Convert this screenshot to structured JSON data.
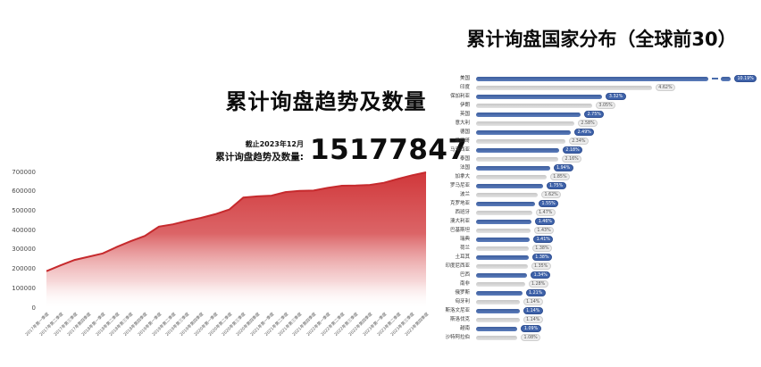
{
  "left_chart": {
    "title": "累计询盘趋势及数量",
    "as_of": "截止2023年12月",
    "stat_label": "累计询盘趋势及数量:",
    "stat_value": "15177847"
  },
  "right_chart": {
    "title": "累计询盘国家分布（全球前30）"
  },
  "colors": {
    "area_fill_top": "#cf3134",
    "area_line": "#c62a2d",
    "bar_blue": "#4a6dac",
    "bar_gray": "#d8d8d8",
    "badge_blue": "#3f63aa",
    "badge_gray": "#ececec"
  },
  "chart_data": [
    {
      "type": "area",
      "title": "累计询盘趋势及数量",
      "xlabel": "",
      "ylabel": "",
      "ylim": [
        0,
        700000
      ],
      "yticks": [
        0,
        100000,
        200000,
        300000,
        400000,
        500000,
        600000,
        700000
      ],
      "grid": false,
      "x": [
        "2017年第一季度",
        "2017年第二季度",
        "2017年第三季度",
        "2017年第四季度",
        "2018年第一季度",
        "2018年第二季度",
        "2018年第三季度",
        "2018年第四季度",
        "2019年第一季度",
        "2019年第二季度",
        "2019年第三季度",
        "2019年第四季度",
        "2020年第一季度",
        "2020年第二季度",
        "2020年第三季度",
        "2020年第四季度",
        "2021年第一季度",
        "2021年第二季度",
        "2021年第三季度",
        "2021年第四季度",
        "2022年第一季度",
        "2022年第二季度",
        "2022年第三季度",
        "2022年第四季度",
        "2023年第一季度",
        "2023年第二季度",
        "2023年第三季度",
        "2023年第四季度"
      ],
      "values": [
        190000,
        220000,
        248000,
        265000,
        282000,
        315000,
        345000,
        372000,
        420000,
        432000,
        450000,
        465000,
        484000,
        508000,
        570000,
        576000,
        580000,
        598000,
        604000,
        606000,
        620000,
        631000,
        632000,
        635000,
        646000,
        666000,
        685000,
        700000
      ]
    },
    {
      "type": "bar",
      "orientation": "horizontal",
      "title": "累计询盘国家分布（全球前30）",
      "axis_break_on_first_bar": true,
      "categories": [
        "美国",
        "印度",
        "保加利亚",
        "伊朗",
        "英国",
        "意大利",
        "德国",
        "墨西哥",
        "马来西亚",
        "泰国",
        "法国",
        "加拿大",
        "罗马尼亚",
        "波兰",
        "克罗地亚",
        "西班牙",
        "澳大利亚",
        "巴基斯坦",
        "瑞典",
        "荷兰",
        "土耳其",
        "印度尼西亚",
        "巴西",
        "南非",
        "俄罗斯",
        "匈牙利",
        "斯洛文尼亚",
        "斯洛伐克",
        "越南",
        "沙特阿拉伯"
      ],
      "values": [
        10.19,
        4.62,
        3.32,
        3.05,
        2.75,
        2.58,
        2.49,
        2.34,
        2.18,
        2.16,
        1.94,
        1.85,
        1.75,
        1.62,
        1.55,
        1.47,
        1.46,
        1.43,
        1.41,
        1.38,
        1.38,
        1.35,
        1.34,
        1.28,
        1.21,
        1.14,
        1.14,
        1.14,
        1.09,
        1.08
      ],
      "labels": [
        "10.19%",
        "4.62%",
        "3.32%",
        "3.05%",
        "2.75%",
        "2.58%",
        "2.49%",
        "2.34%",
        "2.18%",
        "2.16%",
        "1.94%",
        "1.85%",
        "1.75%",
        "1.62%",
        "1.55%",
        "1.47%",
        "1.46%",
        "1.43%",
        "1.41%",
        "1.38%",
        "1.38%",
        "1.35%",
        "1.34%",
        "1.28%",
        "1.21%",
        "1.14%",
        "1.14%",
        "1.14%",
        "1.09%",
        "1.08%"
      ]
    }
  ]
}
